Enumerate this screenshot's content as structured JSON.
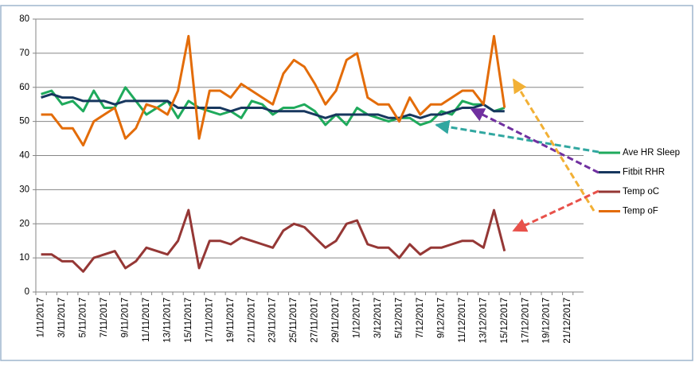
{
  "chart_data": {
    "type": "line",
    "categories": [
      "1/11/2017",
      null,
      "3/11/2017",
      null,
      "5/11/2017",
      null,
      "7/11/2017",
      null,
      "9/11/2017",
      null,
      "11/11/2017",
      null,
      "13/11/2017",
      null,
      "15/11/2017",
      null,
      "17/11/2017",
      null,
      "19/11/2017",
      null,
      "21/11/2017",
      null,
      "23/11/2017",
      null,
      "25/11/2017",
      null,
      "27/11/2017",
      null,
      "29/11/2017",
      null,
      "1/12/2017",
      null,
      "3/12/2017",
      null,
      "5/12/2017",
      null,
      "7/12/2017",
      null,
      "9/12/2017",
      null,
      "11/12/2017",
      null,
      "13/12/2017",
      null,
      "15/12/2017",
      null,
      "17/12/2017",
      null,
      "19/12/2017",
      null,
      "21/12/2017",
      null
    ],
    "series": [
      {
        "name": "Ave HR Sleep",
        "color": "#1faa5c",
        "values": [
          58,
          59,
          55,
          56,
          53,
          59,
          54,
          54,
          60,
          56,
          52,
          54,
          56,
          51,
          56,
          54,
          53,
          52,
          53,
          51,
          56,
          55,
          52,
          54,
          54,
          55,
          53,
          49,
          52,
          49,
          54,
          52,
          51,
          50,
          51,
          51,
          49,
          50,
          53,
          52,
          56,
          55,
          55,
          53,
          54,
          null,
          null,
          null,
          null,
          null,
          null,
          null
        ]
      },
      {
        "name": "Fitbit RHR",
        "color": "#17375e",
        "values": [
          57,
          58,
          57,
          57,
          56,
          56,
          56,
          55,
          56,
          56,
          56,
          56,
          56,
          54,
          54,
          54,
          54,
          54,
          53,
          54,
          54,
          54,
          53,
          53,
          53,
          53,
          52,
          51,
          52,
          52,
          52,
          52,
          52,
          51,
          51,
          52,
          51,
          52,
          52,
          53,
          54,
          54,
          55,
          53,
          53,
          null,
          null,
          null,
          null,
          null,
          null,
          null
        ]
      },
      {
        "name": "Temp oC",
        "color": "#953735",
        "values": [
          11,
          11,
          9,
          9,
          6,
          10,
          11,
          12,
          7,
          9,
          13,
          12,
          11,
          15,
          24,
          7,
          15,
          15,
          14,
          16,
          15,
          14,
          13,
          18,
          20,
          19,
          16,
          13,
          15,
          20,
          21,
          14,
          13,
          13,
          10,
          14,
          11,
          13,
          13,
          14,
          15,
          15,
          13,
          24,
          12,
          null,
          null,
          null,
          null,
          null,
          null,
          null
        ]
      },
      {
        "name": "Temp oF",
        "color": "#e36c09",
        "values": [
          52,
          52,
          48,
          48,
          43,
          50,
          52,
          54,
          45,
          48,
          55,
          54,
          52,
          59,
          75,
          45,
          59,
          59,
          57,
          61,
          59,
          57,
          55,
          64,
          68,
          66,
          61,
          55,
          59,
          68,
          70,
          57,
          55,
          55,
          50,
          57,
          52,
          55,
          55,
          57,
          59,
          59,
          55,
          75,
          54,
          null,
          null,
          null,
          null,
          null,
          null,
          null
        ]
      }
    ],
    "ylim": [
      0,
      80
    ],
    "yticks": [
      0,
      10,
      20,
      30,
      40,
      50,
      60,
      70,
      80
    ],
    "grid": true,
    "legend": "right"
  }
}
